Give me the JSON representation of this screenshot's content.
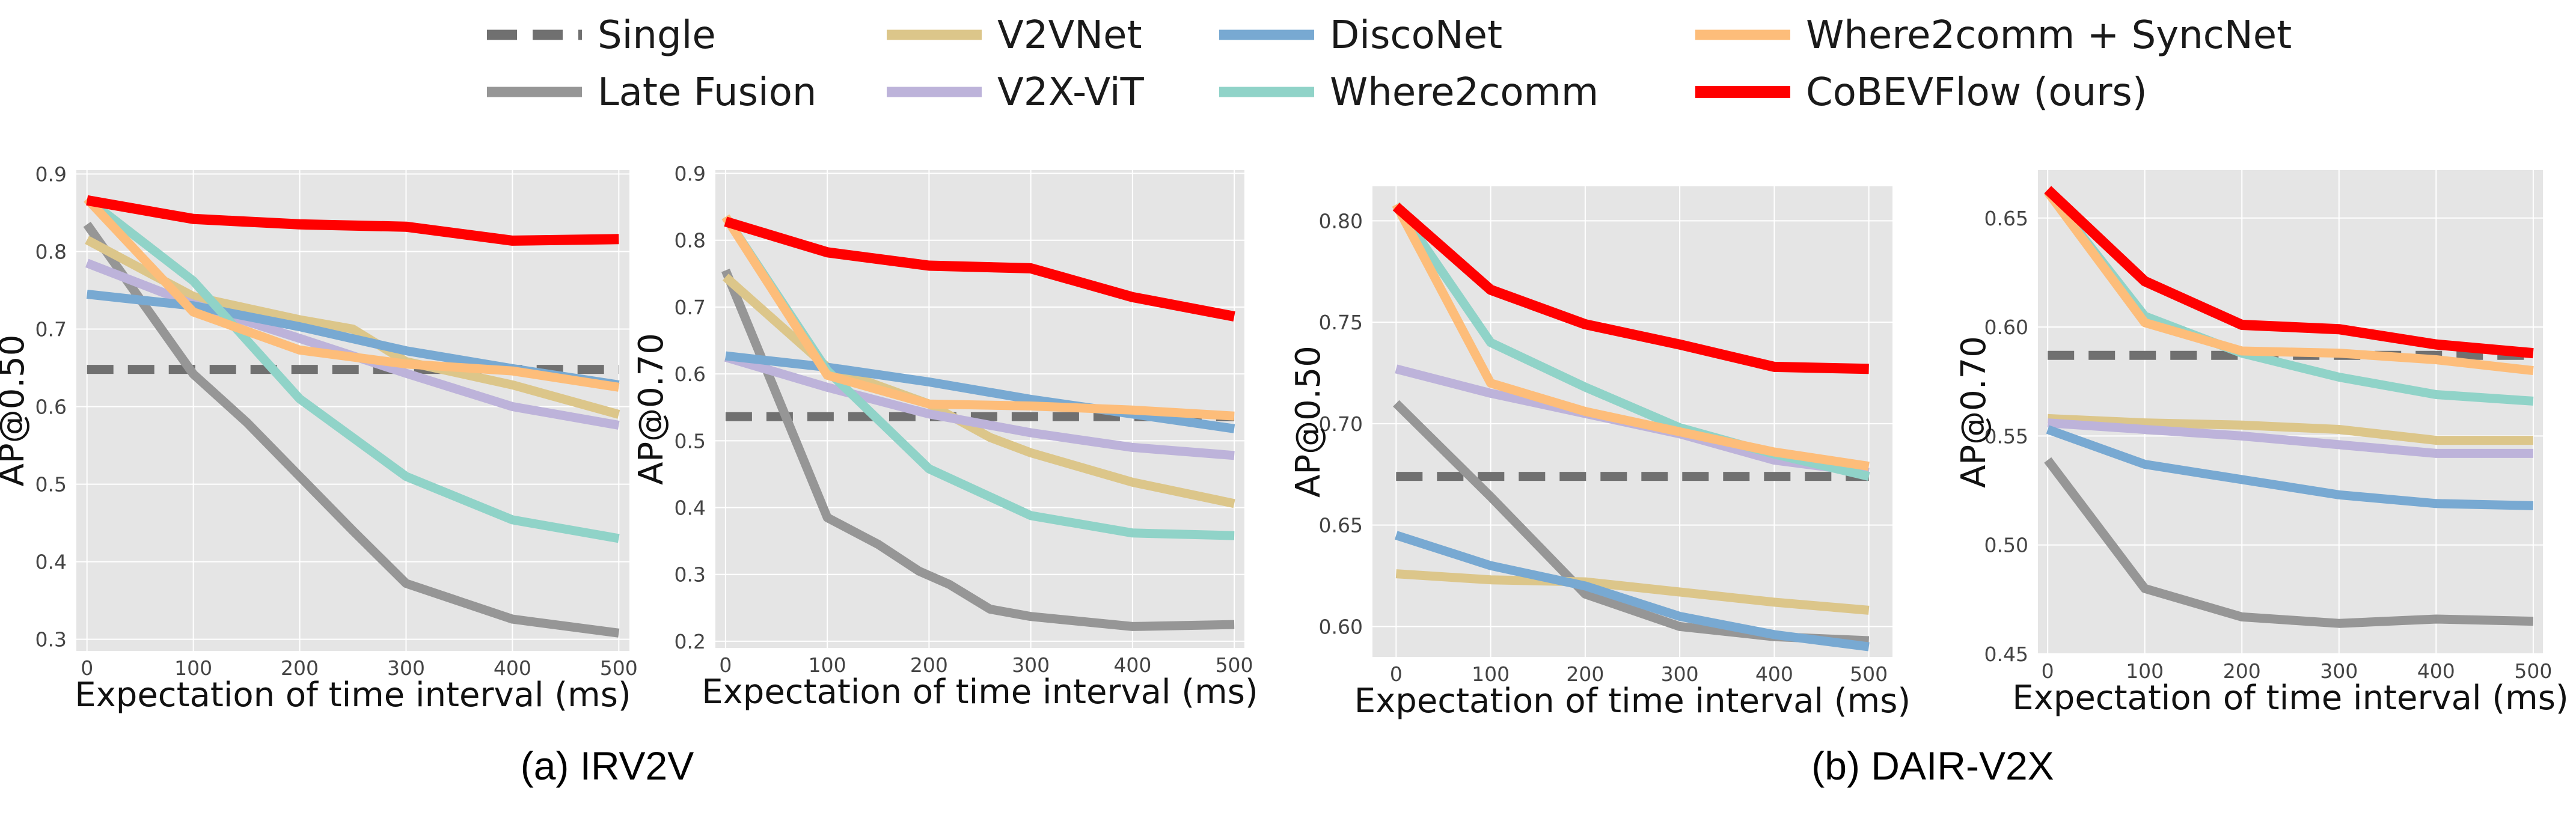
{
  "legend": [
    {
      "key": "single",
      "label": "Single"
    },
    {
      "key": "late",
      "label": "Late Fusion"
    },
    {
      "key": "v2vnet",
      "label": "V2VNet"
    },
    {
      "key": "v2xvit",
      "label": "V2X-ViT"
    },
    {
      "key": "disconet",
      "label": "DiscoNet"
    },
    {
      "key": "where2comm",
      "label": "Where2comm"
    },
    {
      "key": "w2c_sync",
      "label": "Where2comm + SyncNet"
    },
    {
      "key": "cobevflow",
      "label": "CoBEVFlow (ours)"
    }
  ],
  "styles": {
    "single": {
      "color": "#707070",
      "dash": true
    },
    "late": {
      "color": "#969696",
      "dash": false
    },
    "v2vnet": {
      "color": "#dcc68a",
      "dash": false
    },
    "v2xvit": {
      "color": "#bdb3da",
      "dash": false
    },
    "disconet": {
      "color": "#78a9d2",
      "dash": false
    },
    "where2comm": {
      "color": "#90d3c8",
      "dash": false
    },
    "w2c_sync": {
      "color": "#fdbd7a",
      "dash": false
    },
    "cobevflow": {
      "color": "#ff0000",
      "dash": false
    }
  },
  "captions": [
    {
      "id": "irv2v",
      "text": "(a) IRV2V"
    },
    {
      "id": "dair",
      "text": "(b) DAIR-V2X"
    }
  ],
  "chart_data": [
    {
      "type": "line",
      "dataset": "IRV2V",
      "xlabel": "Expectation of time interval (ms)",
      "ylabel": "AP@0.50",
      "xlim": [
        -10,
        510
      ],
      "ylim": [
        0.285,
        0.905
      ],
      "xticks": [
        0,
        100,
        200,
        300,
        400,
        500
      ],
      "yticks": [
        0.3,
        0.4,
        0.5,
        0.6,
        0.7,
        0.8,
        0.9
      ],
      "ytick_labels": [
        "0.3",
        "0.4",
        "0.5",
        "0.6",
        "0.7",
        "0.8",
        "0.9"
      ],
      "series": [
        {
          "key": "single",
          "x": [
            0,
            500
          ],
          "y": [
            0.648,
            0.648
          ]
        },
        {
          "key": "late",
          "x": [
            0,
            100,
            150,
            200,
            250,
            300,
            400,
            500
          ],
          "y": [
            0.835,
            0.642,
            0.58,
            0.51,
            0.44,
            0.372,
            0.326,
            0.308
          ]
        },
        {
          "key": "v2vnet",
          "x": [
            0,
            100,
            200,
            250,
            300,
            400,
            500
          ],
          "y": [
            0.815,
            0.742,
            0.712,
            0.7,
            0.658,
            0.628,
            0.59
          ]
        },
        {
          "key": "v2xvit",
          "x": [
            0,
            100,
            200,
            300,
            400,
            500
          ],
          "y": [
            0.785,
            0.732,
            0.688,
            0.643,
            0.6,
            0.576
          ]
        },
        {
          "key": "disconet",
          "x": [
            0,
            100,
            200,
            300,
            400,
            500
          ],
          "y": [
            0.745,
            0.73,
            0.703,
            0.672,
            0.649,
            0.628
          ]
        },
        {
          "key": "where2comm",
          "x": [
            0,
            100,
            200,
            300,
            400,
            500
          ],
          "y": [
            0.868,
            0.762,
            0.61,
            0.51,
            0.454,
            0.43
          ]
        },
        {
          "key": "w2c_sync",
          "x": [
            0,
            100,
            200,
            300,
            400,
            500
          ],
          "y": [
            0.868,
            0.722,
            0.673,
            0.655,
            0.646,
            0.625
          ]
        },
        {
          "key": "cobevflow",
          "x": [
            0,
            100,
            200,
            300,
            400,
            500
          ],
          "y": [
            0.866,
            0.842,
            0.835,
            0.832,
            0.814,
            0.816
          ]
        }
      ]
    },
    {
      "type": "line",
      "dataset": "IRV2V",
      "xlabel": "Expectation of time interval (ms)",
      "ylabel": "AP@0.70",
      "xlim": [
        -10,
        510
      ],
      "ylim": [
        0.19,
        0.905
      ],
      "xticks": [
        0,
        100,
        200,
        300,
        400,
        500
      ],
      "yticks": [
        0.2,
        0.3,
        0.4,
        0.5,
        0.6,
        0.7,
        0.8,
        0.9
      ],
      "ytick_labels": [
        "0.2",
        "0.3",
        "0.4",
        "0.5",
        "0.6",
        "0.7",
        "0.8",
        "0.9"
      ],
      "series": [
        {
          "key": "single",
          "x": [
            0,
            500
          ],
          "y": [
            0.536,
            0.536
          ]
        },
        {
          "key": "late",
          "x": [
            0,
            100,
            150,
            190,
            220,
            260,
            300,
            400,
            500
          ],
          "y": [
            0.755,
            0.385,
            0.345,
            0.305,
            0.285,
            0.248,
            0.237,
            0.222,
            0.225
          ]
        },
        {
          "key": "v2vnet",
          "x": [
            0,
            100,
            200,
            260,
            300,
            400,
            500
          ],
          "y": [
            0.745,
            0.61,
            0.555,
            0.505,
            0.482,
            0.438,
            0.406
          ]
        },
        {
          "key": "v2xvit",
          "x": [
            0,
            100,
            200,
            300,
            400,
            500
          ],
          "y": [
            0.625,
            0.58,
            0.54,
            0.512,
            0.49,
            0.478
          ]
        },
        {
          "key": "disconet",
          "x": [
            0,
            100,
            200,
            300,
            400,
            500
          ],
          "y": [
            0.627,
            0.61,
            0.588,
            0.562,
            0.54,
            0.518
          ]
        },
        {
          "key": "where2comm",
          "x": [
            0,
            100,
            200,
            300,
            400,
            500
          ],
          "y": [
            0.835,
            0.605,
            0.458,
            0.388,
            0.362,
            0.358
          ]
        },
        {
          "key": "w2c_sync",
          "x": [
            0,
            100,
            200,
            300,
            400,
            500
          ],
          "y": [
            0.835,
            0.598,
            0.555,
            0.552,
            0.546,
            0.537
          ]
        },
        {
          "key": "cobevflow",
          "x": [
            0,
            100,
            200,
            300,
            400,
            500
          ],
          "y": [
            0.828,
            0.782,
            0.762,
            0.758,
            0.715,
            0.686
          ]
        }
      ]
    },
    {
      "type": "line",
      "dataset": "DAIR-V2X",
      "xlabel": "Expectation of time interval (ms)",
      "ylabel": "AP@0.50",
      "xlim": [
        -25,
        525
      ],
      "ylim": [
        0.585,
        0.817
      ],
      "xticks": [
        0,
        100,
        200,
        300,
        400,
        500
      ],
      "yticks": [
        0.6,
        0.65,
        0.7,
        0.75,
        0.8
      ],
      "ytick_labels": [
        "0.60",
        "0.65",
        "0.70",
        "0.75",
        "0.80"
      ],
      "series": [
        {
          "key": "single",
          "x": [
            0,
            500
          ],
          "y": [
            0.674,
            0.674
          ]
        },
        {
          "key": "late",
          "x": [
            0,
            100,
            200,
            300,
            400,
            500
          ],
          "y": [
            0.71,
            0.664,
            0.616,
            0.6,
            0.595,
            0.593
          ]
        },
        {
          "key": "v2vnet",
          "x": [
            0,
            100,
            200,
            300,
            400,
            500
          ],
          "y": [
            0.626,
            0.623,
            0.622,
            0.617,
            0.612,
            0.608
          ]
        },
        {
          "key": "v2xvit",
          "x": [
            0,
            100,
            200,
            300,
            400,
            500
          ],
          "y": [
            0.727,
            0.715,
            0.705,
            0.695,
            0.682,
            0.676
          ]
        },
        {
          "key": "disconet",
          "x": [
            0,
            100,
            200,
            300,
            400,
            500
          ],
          "y": [
            0.645,
            0.63,
            0.62,
            0.605,
            0.596,
            0.59
          ]
        },
        {
          "key": "where2comm",
          "x": [
            0,
            100,
            200,
            300,
            400,
            500
          ],
          "y": [
            0.808,
            0.74,
            0.718,
            0.698,
            0.685,
            0.674
          ]
        },
        {
          "key": "w2c_sync",
          "x": [
            0,
            100,
            200,
            300,
            400,
            500
          ],
          "y": [
            0.808,
            0.72,
            0.706,
            0.696,
            0.686,
            0.679
          ]
        },
        {
          "key": "cobevflow",
          "x": [
            0,
            100,
            200,
            300,
            400,
            500
          ],
          "y": [
            0.807,
            0.766,
            0.749,
            0.739,
            0.728,
            0.727
          ]
        }
      ]
    },
    {
      "type": "line",
      "dataset": "DAIR-V2X",
      "xlabel": "Expectation of time interval (ms)",
      "ylabel": "AP@0.70",
      "xlim": [
        -10,
        510
      ],
      "ylim": [
        0.45,
        0.672
      ],
      "xticks": [
        0,
        100,
        200,
        300,
        400,
        500
      ],
      "yticks": [
        0.45,
        0.5,
        0.55,
        0.6,
        0.65
      ],
      "ytick_labels": [
        "0.45",
        "0.50",
        "0.55",
        "0.60",
        "0.65"
      ],
      "series": [
        {
          "key": "single",
          "x": [
            0,
            500
          ],
          "y": [
            0.587,
            0.587
          ]
        },
        {
          "key": "late",
          "x": [
            0,
            100,
            200,
            300,
            400,
            500
          ],
          "y": [
            0.539,
            0.48,
            0.467,
            0.464,
            0.466,
            0.465
          ]
        },
        {
          "key": "v2vnet",
          "x": [
            0,
            100,
            200,
            300,
            400,
            500
          ],
          "y": [
            0.558,
            0.556,
            0.555,
            0.553,
            0.548,
            0.548
          ]
        },
        {
          "key": "v2xvit",
          "x": [
            0,
            100,
            200,
            300,
            400,
            500
          ],
          "y": [
            0.556,
            0.553,
            0.55,
            0.546,
            0.542,
            0.542
          ]
        },
        {
          "key": "disconet",
          "x": [
            0,
            100,
            200,
            300,
            400,
            500
          ],
          "y": [
            0.553,
            0.537,
            0.53,
            0.523,
            0.519,
            0.518
          ]
        },
        {
          "key": "where2comm",
          "x": [
            0,
            100,
            200,
            300,
            400,
            500
          ],
          "y": [
            0.662,
            0.605,
            0.588,
            0.577,
            0.569,
            0.566
          ]
        },
        {
          "key": "w2c_sync",
          "x": [
            0,
            100,
            200,
            300,
            400,
            500
          ],
          "y": [
            0.662,
            0.602,
            0.589,
            0.588,
            0.585,
            0.58
          ]
        },
        {
          "key": "cobevflow",
          "x": [
            0,
            100,
            200,
            300,
            400,
            500
          ],
          "y": [
            0.663,
            0.621,
            0.601,
            0.599,
            0.592,
            0.588
          ]
        }
      ]
    }
  ]
}
